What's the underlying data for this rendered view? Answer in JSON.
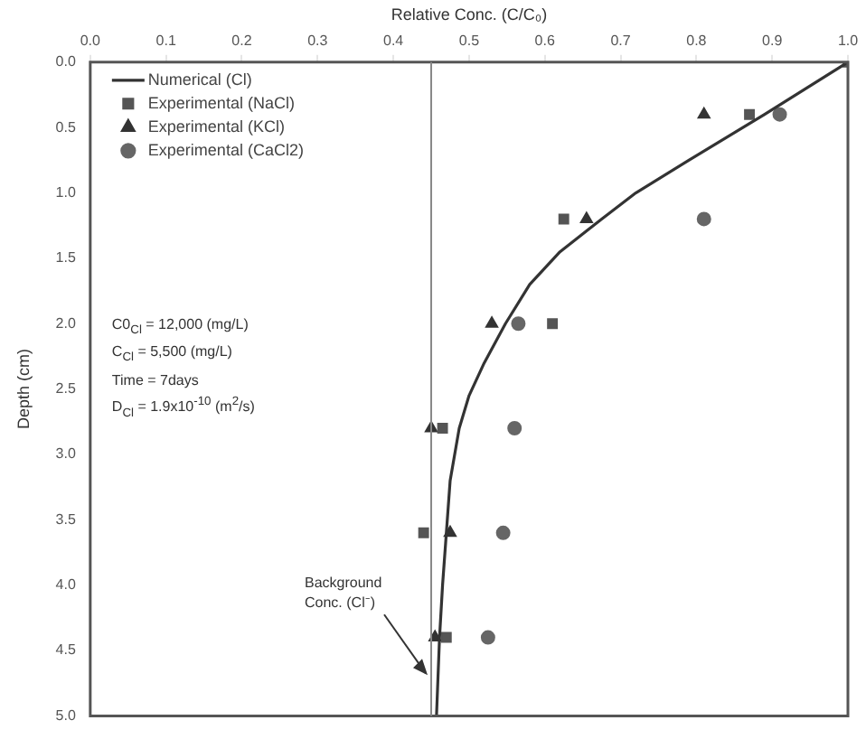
{
  "chart_data": {
    "type": "scatter",
    "xlabel": "Relative Conc. (C/C₀)",
    "ylabel": "Depth (cm)",
    "xlim": [
      0,
      1
    ],
    "xticks": [
      {
        "value": 0,
        "label": "0.0"
      },
      {
        "value": 0.1,
        "label": "0.1"
      },
      {
        "value": 0.2,
        "label": "0.2"
      },
      {
        "value": 0.3,
        "label": "0.3"
      },
      {
        "value": 0.4,
        "label": "0.4"
      },
      {
        "value": 0.5,
        "label": "0.5"
      },
      {
        "value": 0.6,
        "label": "0.6"
      },
      {
        "value": 0.7,
        "label": "0.7"
      },
      {
        "value": 0.8,
        "label": "0.8"
      },
      {
        "value": 0.9,
        "label": "0.9"
      },
      {
        "value": 1,
        "label": "1.0"
      }
    ],
    "ylim": [
      5,
      0
    ],
    "yticks": [
      {
        "value": 0,
        "label": "0.0"
      },
      {
        "value": 0.5,
        "label": "0.5"
      },
      {
        "value": 1,
        "label": "1.0"
      },
      {
        "value": 1.5,
        "label": "1.5"
      },
      {
        "value": 2,
        "label": "2.0"
      },
      {
        "value": 2.5,
        "label": "2.5"
      },
      {
        "value": 3,
        "label": "3.0"
      },
      {
        "value": 3.5,
        "label": "3.5"
      },
      {
        "value": 4,
        "label": "4.0"
      },
      {
        "value": 4.5,
        "label": "4.5"
      },
      {
        "value": 5,
        "label": "5.0"
      }
    ],
    "grid": false,
    "legend": "top left",
    "series": [
      {
        "name": "Numerical (Cl)",
        "type": "line",
        "marker": "none",
        "color": "#333333",
        "x": [
          1.0,
          0.89,
          0.79,
          0.72,
          0.675,
          0.62,
          0.58,
          0.548,
          0.52,
          0.5,
          0.487,
          0.475,
          0.47,
          0.465,
          0.461,
          0.457
        ],
        "values": [
          0,
          0.4,
          0.75,
          1.0,
          1.2,
          1.45,
          1.7,
          2.0,
          2.3,
          2.55,
          2.8,
          3.2,
          3.6,
          4.0,
          4.4,
          5.0
        ]
      },
      {
        "name": "Experimental (NaCl)",
        "marker": "square",
        "color": "#555555",
        "x": [
          1.0,
          0.87,
          0.625,
          0.61,
          0.465,
          0.44,
          0.47
        ],
        "values": [
          0,
          0.4,
          1.2,
          2.0,
          2.8,
          3.6,
          4.4
        ]
      },
      {
        "name": "Experimental (KCl)",
        "marker": "triangle",
        "color": "#333333",
        "x": [
          0.81,
          0.655,
          0.53,
          0.45,
          0.475,
          0.455
        ],
        "values": [
          0.4,
          1.2,
          2.0,
          2.8,
          3.6,
          4.4
        ]
      },
      {
        "name": "Experimental (CaCl2)",
        "marker": "circle",
        "color": "#666666",
        "x": [
          0.91,
          0.81,
          0.565,
          0.56,
          0.545,
          0.525
        ],
        "values": [
          0.4,
          1.2,
          2.0,
          2.8,
          3.6,
          4.4
        ]
      }
    ],
    "ref_lines": [
      {
        "axis": "x",
        "value": 0.45,
        "label": "Background Conc. (Cl⁻)",
        "color": "#888888"
      }
    ],
    "annotations": [
      "C0$_{Cl}$ = 12,000 (mg/L)",
      "C$_{Cl}$ = 5,500 (mg/L)",
      "Time = 7days",
      "D$_{Cl}$ = 1.9x10$^{-10}$ (m$^{2}$/s)"
    ]
  }
}
